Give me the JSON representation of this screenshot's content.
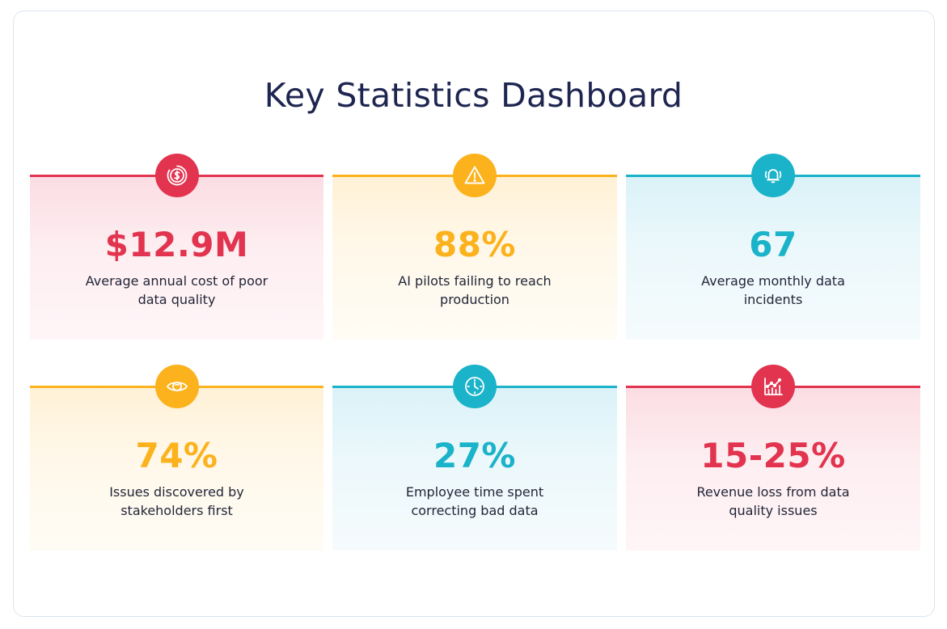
{
  "title": "Key Statistics Dashboard",
  "colors": {
    "red": "#e2334f",
    "orange": "#fbb21c",
    "teal": "#1ab3c9",
    "title": "#1e2550"
  },
  "cards": [
    {
      "value": "$12.9M",
      "label": "Average annual cost of poor data quality",
      "icon": "dollar-coin-icon",
      "color": "red"
    },
    {
      "value": "88%",
      "label": "AI pilots failing to reach production",
      "icon": "warning-triangle-icon",
      "color": "orange"
    },
    {
      "value": "67",
      "label": "Average monthly data incidents",
      "icon": "bell-alert-icon",
      "color": "teal"
    },
    {
      "value": "74%",
      "label": "Issues discovered by stakeholders first",
      "icon": "eye-icon",
      "color": "orange"
    },
    {
      "value": "27%",
      "label": "Employee time spent correcting bad data",
      "icon": "clock-icon",
      "color": "teal"
    },
    {
      "value": "15-25%",
      "label": "Revenue loss from data quality issues",
      "icon": "trending-chart-icon",
      "color": "red"
    }
  ]
}
